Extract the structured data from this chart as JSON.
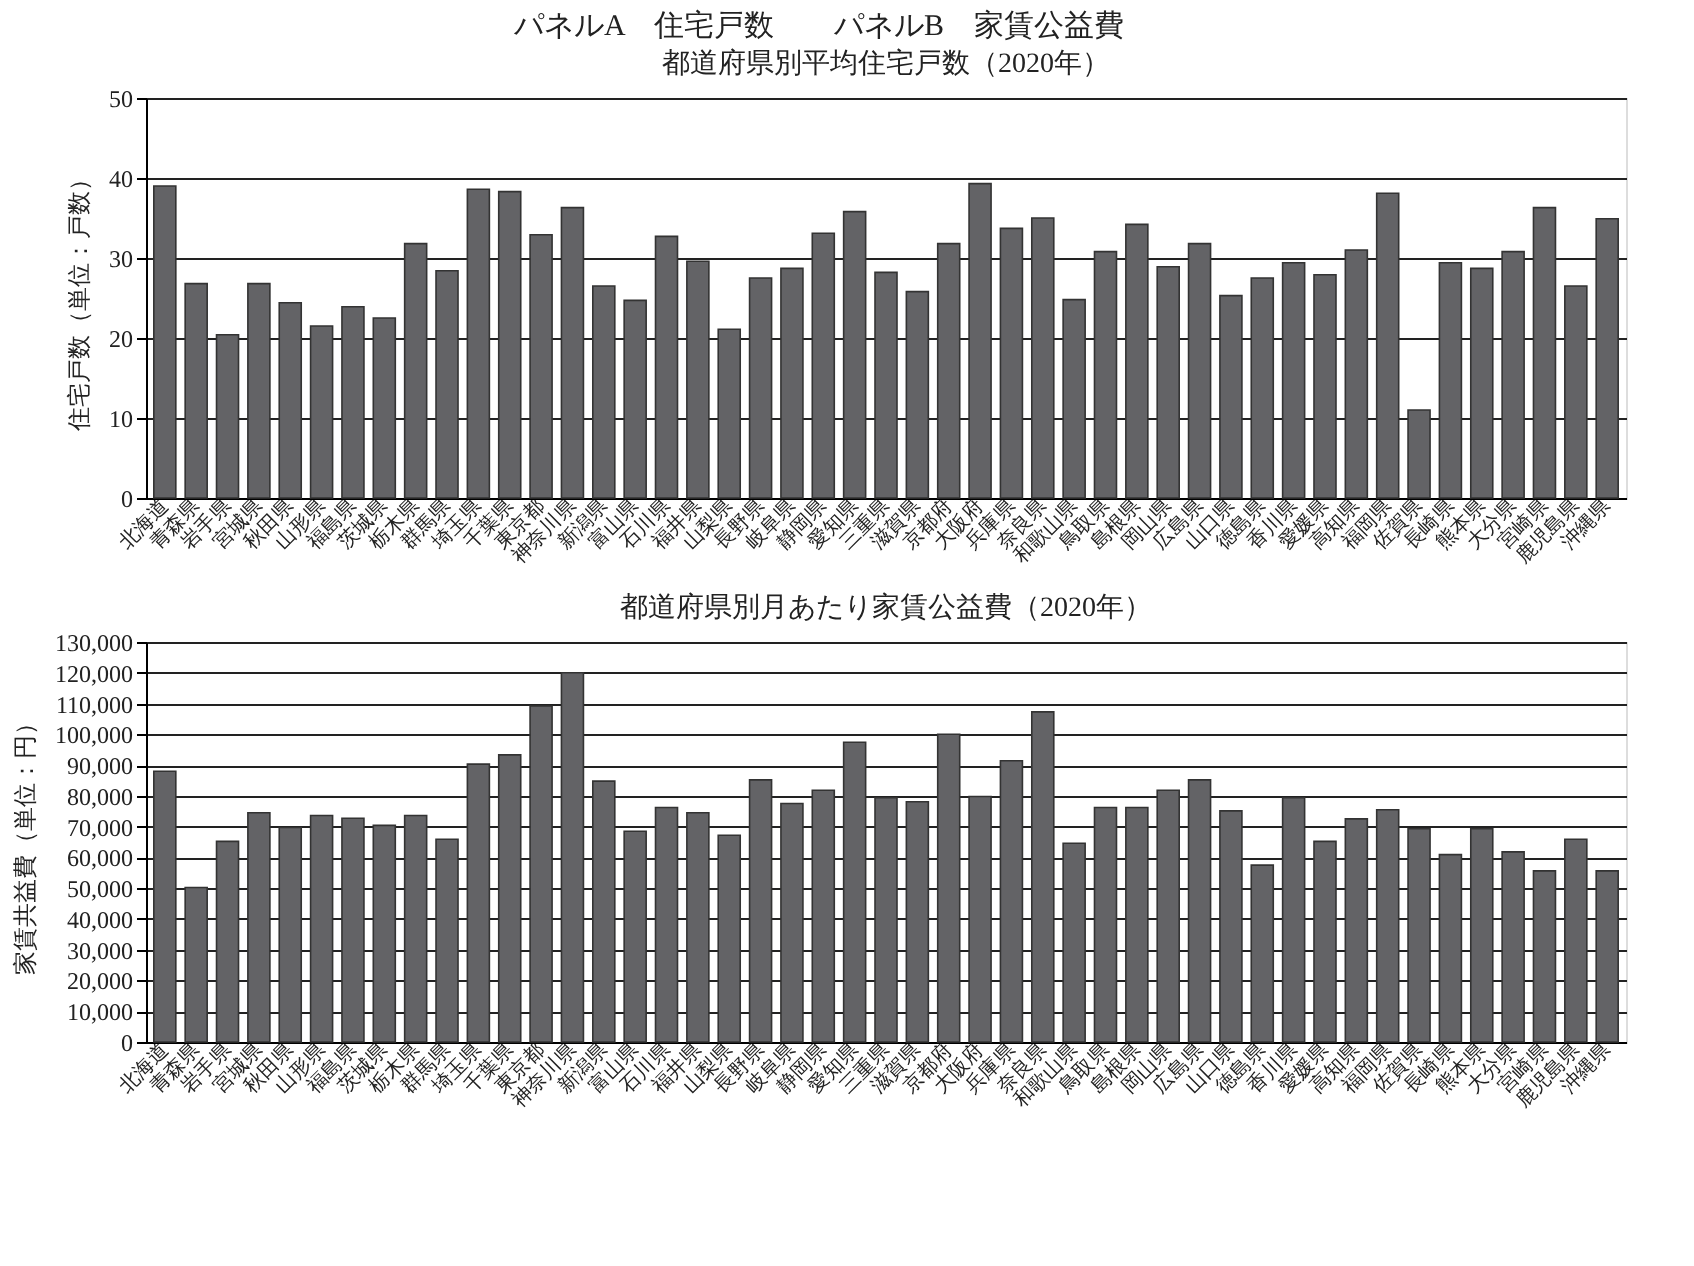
{
  "chart_data": [
    {
      "type": "bar",
      "title": "都道府県別平均住宅戸数（2020年）",
      "annotations": [
        "パネルA　住宅戸数　　パネルB　家賃公益費"
      ],
      "ylabel": "住宅戸数（単位：戸数）",
      "color": "#636366",
      "grid": "y",
      "ylim": [
        0,
        50
      ],
      "yticks": [
        0,
        10,
        20,
        30,
        40,
        50
      ],
      "categories": [
        "北海道",
        "青森県",
        "岩手県",
        "宮城県",
        "秋田県",
        "山形県",
        "福島県",
        "茨城県",
        "栃木県",
        "群馬県",
        "埼玉県",
        "千葉県",
        "東京都",
        "神奈川県",
        "新潟県",
        "富山県",
        "石川県",
        "福井県",
        "山梨県",
        "長野県",
        "岐阜県",
        "静岡県",
        "愛知県",
        "三重県",
        "滋賀県",
        "京都府",
        "大阪府",
        "兵庫県",
        "奈良県",
        "和歌山県",
        "鳥取県",
        "島根県",
        "岡山県",
        "広島県",
        "山口県",
        "徳島県",
        "香川県",
        "愛媛県",
        "高知県",
        "福岡県",
        "佐賀県",
        "長崎県",
        "熊本県",
        "大分県",
        "宮崎県",
        "鹿児島県",
        "沖縄県"
      ],
      "values": [
        39.0,
        26.8,
        20.4,
        26.8,
        24.4,
        21.5,
        23.9,
        22.5,
        31.8,
        28.4,
        38.6,
        38.3,
        32.9,
        36.3,
        26.5,
        24.7,
        32.7,
        29.6,
        21.1,
        27.5,
        28.7,
        33.1,
        35.8,
        28.2,
        25.8,
        31.8,
        39.3,
        33.7,
        35.0,
        24.8,
        30.8,
        34.2,
        28.9,
        31.8,
        25.3,
        27.5,
        29.4,
        27.9,
        31.0,
        38.1,
        11.0,
        29.4,
        28.7,
        30.8,
        36.3,
        26.5,
        34.9
      ]
    },
    {
      "type": "bar",
      "title": "都道府県別月あたり家賃公益費（2020年）",
      "ylabel": "家賃共益費（単位：円）",
      "color": "#636366",
      "grid": "y",
      "ylim": [
        0,
        130000
      ],
      "yticks": [
        0,
        {
          "value": 10000,
          "label": "10,000"
        },
        {
          "value": 20000,
          "label": "20,000"
        },
        {
          "value": 30000,
          "label": "30,000"
        },
        {
          "value": 40000,
          "label": "40,000"
        },
        {
          "value": 50000,
          "label": "50,000"
        },
        {
          "value": 60000,
          "label": "60,000"
        },
        {
          "value": 70000,
          "label": "70,000"
        },
        {
          "value": 80000,
          "label": "80,000"
        },
        {
          "value": 90000,
          "label": "90,000"
        },
        {
          "value": 100000,
          "label": "100,000"
        },
        {
          "value": 110000,
          "label": "110,000"
        },
        {
          "value": 120000,
          "label": "120,000"
        },
        {
          "value": 130000,
          "label": "130,000"
        }
      ],
      "categories": [
        "北海道",
        "青森県",
        "岩手県",
        "宮城県",
        "秋田県",
        "山形県",
        "福島県",
        "茨城県",
        "栃木県",
        "群馬県",
        "埼玉県",
        "千葉県",
        "東京都",
        "神奈川県",
        "新潟県",
        "富山県",
        "石川県",
        "福井県",
        "山梨県",
        "長野県",
        "岐阜県",
        "静岡県",
        "愛知県",
        "三重県",
        "滋賀県",
        "京都府",
        "大阪府",
        "兵庫県",
        "奈良県",
        "和歌山県",
        "鳥取県",
        "島根県",
        "岡山県",
        "広島県",
        "山口県",
        "徳島県",
        "香川県",
        "愛媛県",
        "高知県",
        "福岡県",
        "佐賀県",
        "長崎県",
        "熊本県",
        "大分県",
        "宮崎県",
        "鹿児島県",
        "沖縄県"
      ],
      "values": [
        88000,
        50200,
        65200,
        74500,
        69700,
        73600,
        72700,
        70400,
        73600,
        65900,
        90300,
        93300,
        109200,
        120000,
        84800,
        68500,
        76200,
        74500,
        67200,
        85200,
        77500,
        81800,
        97400,
        79400,
        78100,
        100000,
        79800,
        91400,
        107300,
        64600,
        76200,
        76200,
        81800,
        85200,
        75100,
        57500,
        79400,
        65200,
        72500,
        75500,
        69300,
        60900,
        69300,
        61800,
        55600,
        65900,
        55600
      ]
    }
  ]
}
